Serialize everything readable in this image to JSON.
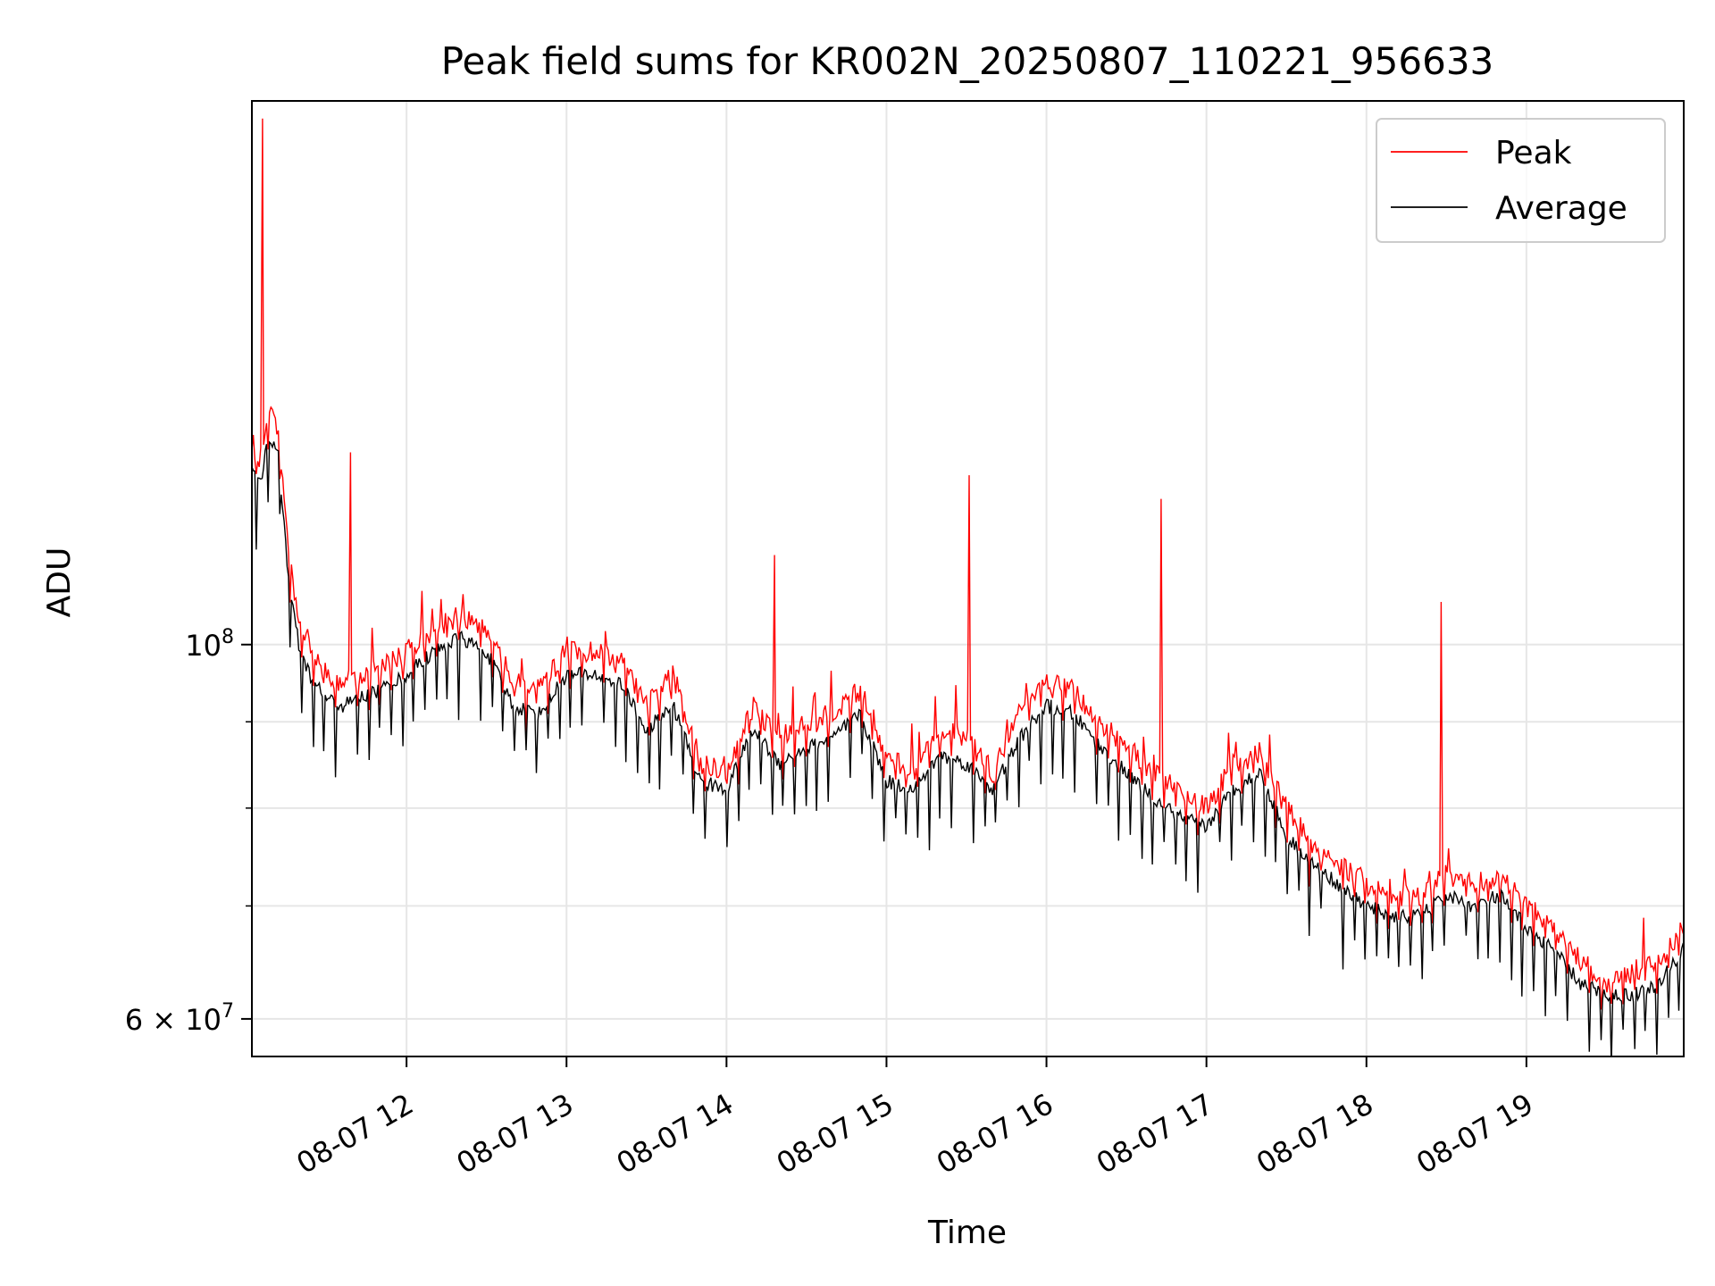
{
  "chart_data": {
    "type": "line",
    "title": "Peak field sums for KR002N_20250807_110221_956633",
    "xlabel": "Time",
    "ylabel": "ADU",
    "y_scale": "log",
    "xlim": [
      "2025-08-07 11:02",
      "2025-08-07 19:59"
    ],
    "ylim": [
      57000000,
      210000000
    ],
    "x_tick_labels": [
      "08-07 12",
      "08-07 13",
      "08-07 14",
      "08-07 15",
      "08-07 16",
      "08-07 17",
      "08-07 18",
      "08-07 19"
    ],
    "x_tick_times": [
      "2025-08-07 12:00",
      "2025-08-07 13:00",
      "2025-08-07 14:00",
      "2025-08-07 15:00",
      "2025-08-07 16:00",
      "2025-08-07 17:00",
      "2025-08-07 18:00",
      "2025-08-07 19:00"
    ],
    "y_major_ticks": [
      {
        "value": 100000000,
        "base": "10",
        "exp": "8"
      },
      {
        "value": 60000000,
        "base": "6 × 10",
        "exp": "7"
      }
    ],
    "y_minor_ticks": [
      70000000,
      80000000,
      90000000
    ],
    "grid": true,
    "legend_position": "top-right",
    "series": [
      {
        "name": "Peak",
        "color": "#ff0000",
        "x": [
          "2025-08-07 11:02",
          "2025-08-07 11:05",
          "2025-08-07 11:08",
          "2025-08-07 11:12",
          "2025-08-07 11:16",
          "2025-08-07 11:20",
          "2025-08-07 11:25",
          "2025-08-07 11:30",
          "2025-08-07 11:36",
          "2025-08-07 11:43",
          "2025-08-07 11:50",
          "2025-08-07 12:00",
          "2025-08-07 12:10",
          "2025-08-07 12:20",
          "2025-08-07 12:30",
          "2025-08-07 12:40",
          "2025-08-07 12:50",
          "2025-08-07 13:00",
          "2025-08-07 13:10",
          "2025-08-07 13:20",
          "2025-08-07 13:30",
          "2025-08-07 13:40",
          "2025-08-07 13:50",
          "2025-08-07 14:00",
          "2025-08-07 14:10",
          "2025-08-07 14:20",
          "2025-08-07 14:30",
          "2025-08-07 14:40",
          "2025-08-07 14:50",
          "2025-08-07 15:00",
          "2025-08-07 15:10",
          "2025-08-07 15:20",
          "2025-08-07 15:30",
          "2025-08-07 15:40",
          "2025-08-07 15:50",
          "2025-08-07 16:00",
          "2025-08-07 16:10",
          "2025-08-07 16:20",
          "2025-08-07 16:30",
          "2025-08-07 16:40",
          "2025-08-07 16:50",
          "2025-08-07 17:00",
          "2025-08-07 17:10",
          "2025-08-07 17:20",
          "2025-08-07 17:30",
          "2025-08-07 17:40",
          "2025-08-07 17:50",
          "2025-08-07 18:00",
          "2025-08-07 18:10",
          "2025-08-07 18:20",
          "2025-08-07 18:30",
          "2025-08-07 18:40",
          "2025-08-07 18:50",
          "2025-08-07 19:00",
          "2025-08-07 19:10",
          "2025-08-07 19:20",
          "2025-08-07 19:30",
          "2025-08-07 19:40",
          "2025-08-07 19:50",
          "2025-08-07 19:59"
        ],
        "y": [
          132000000,
          128000000,
          138000000,
          133000000,
          112000000,
          103000000,
          99000000,
          96000000,
          95000000,
          96000000,
          97000000,
          99000000,
          102000000,
          104000000,
          102000000,
          95000000,
          94000000,
          99000000,
          99000000,
          98000000,
          92000000,
          96000000,
          85000000,
          84000000,
          92000000,
          88000000,
          90000000,
          91000000,
          94000000,
          86000000,
          84000000,
          89000000,
          88000000,
          84000000,
          91000000,
          95000000,
          94000000,
          90000000,
          87000000,
          84000000,
          82000000,
          80000000,
          85000000,
          86000000,
          80000000,
          76000000,
          74000000,
          72000000,
          71000000,
          71000000,
          73000000,
          72000000,
          73000000,
          70000000,
          68000000,
          65000000,
          63000000,
          64000000,
          65000000,
          68000000
        ]
      },
      {
        "name": "Average",
        "color": "#000000",
        "x": [
          "2025-08-07 11:02",
          "2025-08-07 11:05",
          "2025-08-07 11:08",
          "2025-08-07 11:12",
          "2025-08-07 11:16",
          "2025-08-07 11:20",
          "2025-08-07 11:25",
          "2025-08-07 11:30",
          "2025-08-07 11:36",
          "2025-08-07 11:43",
          "2025-08-07 11:50",
          "2025-08-07 12:00",
          "2025-08-07 12:10",
          "2025-08-07 12:20",
          "2025-08-07 12:30",
          "2025-08-07 12:40",
          "2025-08-07 12:50",
          "2025-08-07 13:00",
          "2025-08-07 13:10",
          "2025-08-07 13:20",
          "2025-08-07 13:30",
          "2025-08-07 13:40",
          "2025-08-07 13:50",
          "2025-08-07 14:00",
          "2025-08-07 14:10",
          "2025-08-07 14:20",
          "2025-08-07 14:30",
          "2025-08-07 14:40",
          "2025-08-07 14:50",
          "2025-08-07 15:00",
          "2025-08-07 15:10",
          "2025-08-07 15:20",
          "2025-08-07 15:30",
          "2025-08-07 15:40",
          "2025-08-07 15:50",
          "2025-08-07 16:00",
          "2025-08-07 16:10",
          "2025-08-07 16:20",
          "2025-08-07 16:30",
          "2025-08-07 16:40",
          "2025-08-07 16:50",
          "2025-08-07 17:00",
          "2025-08-07 17:10",
          "2025-08-07 17:20",
          "2025-08-07 17:30",
          "2025-08-07 17:40",
          "2025-08-07 17:50",
          "2025-08-07 18:00",
          "2025-08-07 18:10",
          "2025-08-07 18:20",
          "2025-08-07 18:30",
          "2025-08-07 18:40",
          "2025-08-07 18:50",
          "2025-08-07 19:00",
          "2025-08-07 19:10",
          "2025-08-07 19:20",
          "2025-08-07 19:30",
          "2025-08-07 19:40",
          "2025-08-07 19:50",
          "2025-08-07 19:59"
        ],
        "y": [
          128000000,
          124000000,
          133000000,
          129000000,
          108000000,
          99000000,
          95000000,
          93000000,
          92000000,
          93000000,
          94000000,
          96000000,
          99000000,
          101000000,
          99000000,
          92000000,
          91000000,
          96000000,
          96000000,
          95000000,
          89000000,
          92000000,
          83000000,
          82000000,
          89000000,
          85000000,
          87000000,
          88000000,
          91000000,
          83000000,
          82000000,
          86000000,
          85000000,
          82000000,
          88000000,
          92000000,
          91000000,
          87000000,
          84000000,
          81000000,
          79000000,
          78000000,
          82000000,
          84000000,
          77000000,
          74000000,
          72000000,
          70000000,
          69000000,
          69000000,
          71000000,
          70000000,
          71000000,
          68000000,
          66000000,
          63000000,
          62000000,
          62000000,
          63000000,
          66000000
        ]
      }
    ],
    "annotations": [
      {
        "series": "Peak",
        "x": "2025-08-07 11:06",
        "y": 205000000
      },
      {
        "series": "Peak",
        "x": "2025-08-07 11:39",
        "y": 130000000
      },
      {
        "series": "Peak",
        "x": "2025-08-07 14:18",
        "y": 113000000
      },
      {
        "series": "Peak",
        "x": "2025-08-07 15:31",
        "y": 126000000
      },
      {
        "series": "Peak",
        "x": "2025-08-07 16:43",
        "y": 122000000
      },
      {
        "series": "Peak",
        "x": "2025-08-07 18:28",
        "y": 106000000
      }
    ]
  }
}
